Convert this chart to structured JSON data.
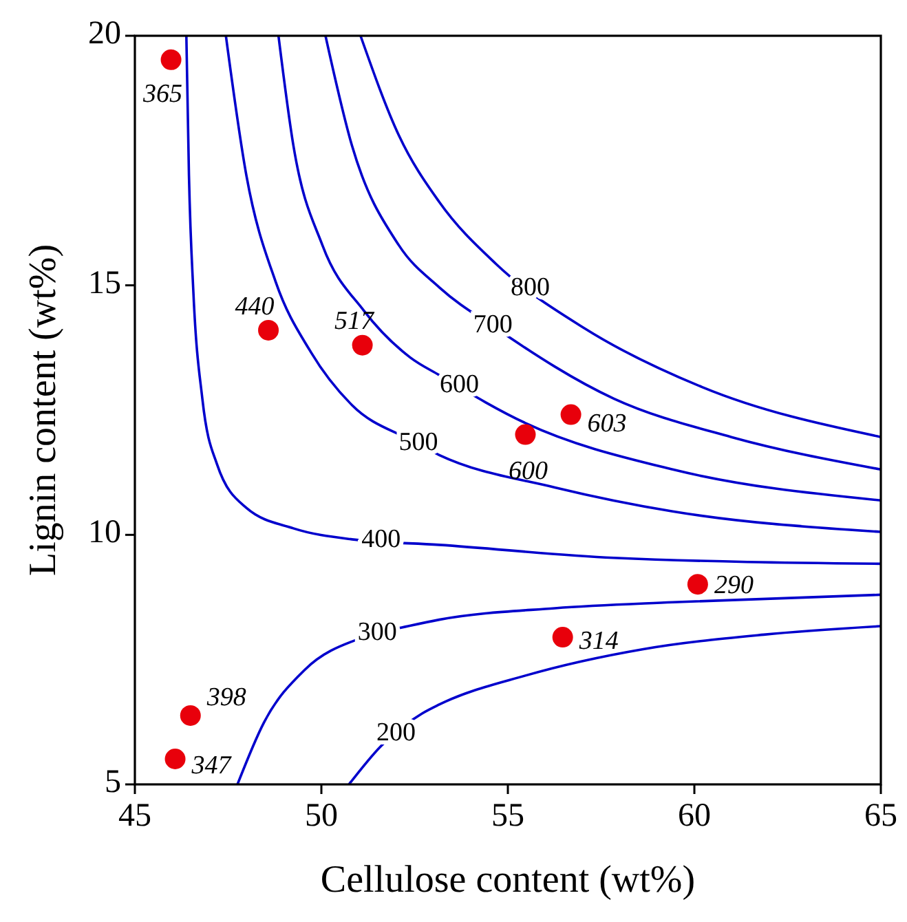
{
  "chart_data": {
    "type": "line",
    "xlabel": "Cellulose content (wt%)",
    "ylabel": "Lignin content (wt%)",
    "xlim": [
      45,
      65
    ],
    "ylim": [
      5,
      20
    ],
    "xticks": [
      45,
      50,
      55,
      60,
      65
    ],
    "yticks": [
      5,
      10,
      15,
      20
    ],
    "grid": false,
    "series": [
      {
        "name": "200",
        "color": "#0000cc",
        "x": [
          50.74,
          51.6,
          52.7,
          53.16,
          55.47,
          58.63,
          61.86,
          65
        ],
        "values": [
          5,
          5.77,
          6.42,
          6.6,
          7.18,
          7.71,
          8.0,
          8.17
        ]
      },
      {
        "name": "300",
        "color": "#0000cc",
        "x": [
          47.75,
          48.46,
          49.56,
          51.13,
          52.39,
          53.16,
          56.26,
          59.42,
          65
        ],
        "values": [
          5,
          6.24,
          7.3,
          7.95,
          8.18,
          8.3,
          8.53,
          8.65,
          8.8
        ]
      },
      {
        "name": "400",
        "color": "#0000cc",
        "x": [
          46.38,
          46.45,
          46.57,
          46.81,
          47.2,
          47.99,
          49.25,
          50.82,
          53.16,
          57.84,
          65
        ],
        "values": [
          20,
          17.2,
          14.84,
          12.72,
          11.42,
          10.54,
          10.13,
          9.91,
          9.8,
          9.54,
          9.42
        ]
      },
      {
        "name": "500",
        "color": "#0000cc",
        "x": [
          47.44,
          47.99,
          48.77,
          49.72,
          50.82,
          52.39,
          53.16,
          56.26,
          59.42,
          65
        ],
        "values": [
          20,
          17.2,
          15.08,
          13.66,
          12.6,
          11.9,
          11.6,
          10.95,
          10.47,
          10.06
        ]
      },
      {
        "name": "600",
        "color": "#0000cc",
        "x": [
          48.85,
          49.25,
          50.03,
          51.13,
          52.39,
          53.16,
          55.47,
          59.42,
          65
        ],
        "values": [
          20,
          17.8,
          15.8,
          14.5,
          13.55,
          13.2,
          12.24,
          11.31,
          10.69
        ]
      },
      {
        "name": "700",
        "color": "#0000cc",
        "x": [
          50.11,
          50.82,
          52.08,
          53.16,
          54.68,
          57.84,
          60.99,
          65
        ],
        "values": [
          20,
          17.8,
          15.8,
          14.96,
          14.14,
          12.73,
          11.96,
          11.31
        ]
      },
      {
        "name": "800",
        "color": "#0000cc",
        "x": [
          51.05,
          52.08,
          53.16,
          54.68,
          57.05,
          60.21,
          65
        ],
        "values": [
          20,
          18.0,
          16.67,
          15.43,
          14.14,
          12.96,
          11.96
        ]
      },
      {
        "type": "scatter",
        "color": "#e8000b",
        "marker": "circle",
        "x": [
          45.97,
          48.58,
          51.1,
          56.69,
          55.47,
          60.09,
          56.47,
          46.49,
          46.08
        ],
        "values": [
          19.52,
          14.1,
          13.8,
          12.41,
          12.01,
          9.01,
          7.95,
          6.38,
          5.51
        ]
      }
    ],
    "annotations": [
      {
        "text": "365",
        "x": 45.97,
        "y": 19.52
      },
      {
        "text": "440",
        "x": 48.58,
        "y": 14.1
      },
      {
        "text": "517",
        "x": 51.1,
        "y": 13.8
      },
      {
        "text": "603",
        "x": 56.69,
        "y": 12.41
      },
      {
        "text": "600",
        "x": 55.47,
        "y": 12.01
      },
      {
        "text": "290",
        "x": 60.09,
        "y": 9.01
      },
      {
        "text": "314",
        "x": 56.47,
        "y": 7.95
      },
      {
        "text": "398",
        "x": 46.49,
        "y": 6.38
      },
      {
        "text": "347",
        "x": 46.08,
        "y": 5.51
      }
    ]
  }
}
